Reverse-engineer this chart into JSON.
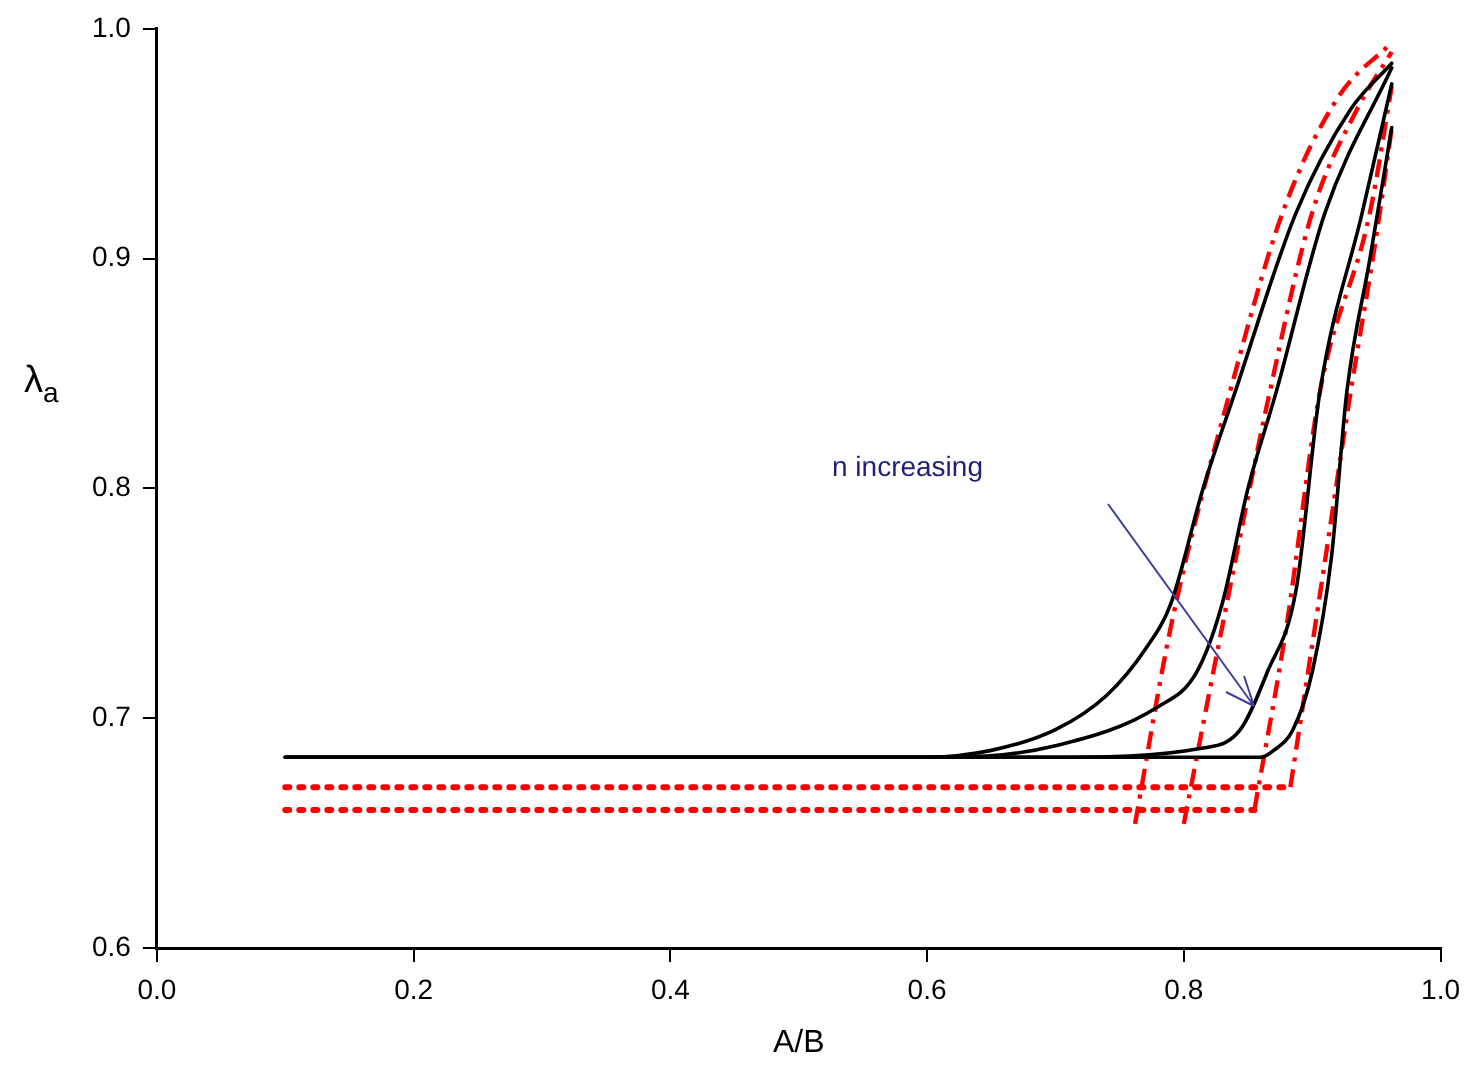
{
  "chart_data": {
    "type": "line",
    "xlabel": "A/B",
    "ylabel": "λ$_{a}$",
    "xlim": [
      0,
      1
    ],
    "ylim": [
      0.6,
      1
    ],
    "xticks": [
      {
        "value": 0,
        "label": "0.0"
      },
      0.2,
      0.4,
      0.6,
      0.8,
      {
        "value": 1,
        "label": "1.0"
      }
    ],
    "yticks": [
      {
        "value": 0.6,
        "label": "0.6"
      },
      0.7,
      0.8,
      0.9,
      {
        "value": 1,
        "label": "1.0"
      }
    ],
    "grid": false,
    "legend": false,
    "marker": "none",
    "annotations": [
      "n increasing"
    ],
    "series": [
      {
        "color": "#000000",
        "line_style": "solid",
        "x": [
          0.1,
          0.3,
          0.5,
          0.6,
          0.65,
          0.7,
          0.74,
          0.77,
          0.79,
          0.815,
          0.84,
          0.8875,
          0.93,
          0.962
        ],
        "values": [
          0.683,
          0.683,
          0.683,
          0.683,
          0.686,
          0.695,
          0.71,
          0.73,
          0.75,
          0.8,
          0.842,
          0.92,
          0.965,
          0.985
        ]
      },
      {
        "color": "#000000",
        "line_style": "solid",
        "x": [
          0.1,
          0.3,
          0.5,
          0.62,
          0.7,
          0.78,
          0.81,
          0.83,
          0.85,
          0.872,
          0.91,
          0.962
        ],
        "values": [
          0.683,
          0.683,
          0.683,
          0.683,
          0.688,
          0.705,
          0.72,
          0.75,
          0.8,
          0.842,
          0.92,
          0.983
        ]
      },
      {
        "color": "#000000",
        "line_style": "solid",
        "x": [
          0.1,
          0.3,
          0.5,
          0.7,
          0.815,
          0.844,
          0.865,
          0.8875,
          0.906,
          0.939,
          0.962
        ],
        "values": [
          0.683,
          0.683,
          0.683,
          0.683,
          0.687,
          0.695,
          0.72,
          0.756,
          0.842,
          0.92,
          0.976
        ]
      },
      {
        "color": "#000000",
        "line_style": "solid",
        "x": [
          0.1,
          0.3,
          0.5,
          0.7,
          0.86,
          0.87,
          0.885,
          0.9,
          0.915,
          0.927,
          0.945,
          0.962
        ],
        "values": [
          0.683,
          0.683,
          0.683,
          0.683,
          0.683,
          0.686,
          0.695,
          0.72,
          0.77,
          0.842,
          0.9,
          0.957
        ]
      },
      {
        "color": "#ff0000",
        "line_style": "dotted",
        "x": [
          0.1,
          0.855
        ],
        "values": [
          0.66,
          0.66
        ]
      },
      {
        "color": "#ff0000",
        "line_style": "dotted",
        "x": [
          0.1,
          0.883
        ],
        "values": [
          0.67,
          0.67
        ]
      },
      {
        "color": "#ff0000",
        "line_style": "dashdot",
        "x": [
          0.762,
          0.79,
          0.835,
          0.877,
          0.92,
          0.962
        ],
        "values": [
          0.654,
          0.74,
          0.84,
          0.92,
          0.97,
          0.994
        ]
      },
      {
        "color": "#ff0000",
        "line_style": "dashdot",
        "x": [
          0.8,
          0.83,
          0.867,
          0.9,
          0.935,
          0.962
        ],
        "values": [
          0.654,
          0.74,
          0.842,
          0.92,
          0.965,
          0.99
        ]
      },
      {
        "color": "#ff0000",
        "line_style": "dashdot",
        "x": [
          0.855,
          0.88,
          0.906,
          0.945,
          0.962
        ],
        "values": [
          0.66,
          0.74,
          0.842,
          0.92,
          0.975
        ]
      },
      {
        "color": "#ff0000",
        "line_style": "dashdot",
        "x": [
          0.883,
          0.905,
          0.93,
          0.95,
          0.962
        ],
        "values": [
          0.67,
          0.75,
          0.842,
          0.91,
          0.957
        ]
      }
    ]
  }
}
